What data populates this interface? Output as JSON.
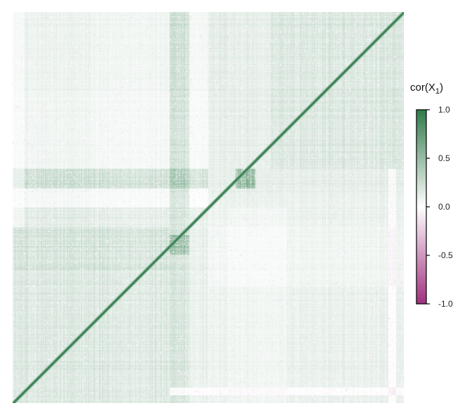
{
  "chart_data": {
    "type": "heatmap",
    "title": "",
    "xlabel": "",
    "ylabel": "",
    "description_of_matrix": "",
    "colorbar": {
      "title_main": "cor(X",
      "title_sub": "1",
      "title_end": ")",
      "range": [
        -1.0,
        1.0
      ],
      "ticks": [
        1.0,
        0.5,
        0.0,
        -0.5,
        -1.0
      ],
      "tick_labels": [
        "1.0",
        "0.5",
        "0.0",
        "-0.5",
        "-1.0"
      ],
      "colors": {
        "high": "#2f7a4a",
        "mid": "#ffffff",
        "low": "#a0307f"
      }
    },
    "diagonal_value": 1.0,
    "blocks": [
      {
        "rows": [
          0.0,
          0.03
        ],
        "cols": [
          0.0,
          0.55
        ],
        "value": -0.12
      },
      {
        "rows": [
          0.0,
          0.2
        ],
        "cols": [
          0.0,
          0.55
        ],
        "value": 0.1
      },
      {
        "rows": [
          0.0,
          0.4
        ],
        "cols": [
          0.66,
          1.0
        ],
        "value": 0.16
      },
      {
        "rows": [
          0.2,
          0.4
        ],
        "cols": [
          0.0,
          0.55
        ],
        "value": 0.06
      },
      {
        "rows": [
          0.4,
          0.45
        ],
        "cols": [
          0.0,
          0.5
        ],
        "value": 0.4
      },
      {
        "rows": [
          0.4,
          0.45
        ],
        "cols": [
          0.57,
          0.62
        ],
        "value": 0.75
      },
      {
        "rows": [
          0.45,
          0.5
        ],
        "cols": [
          0.0,
          1.0
        ],
        "value": 0.02
      },
      {
        "rows": [
          0.5,
          1.0
        ],
        "cols": [
          0.0,
          0.5
        ],
        "value": 0.22
      },
      {
        "rows": [
          0.5,
          1.0
        ],
        "cols": [
          0.5,
          0.55
        ],
        "value": 0.1
      },
      {
        "rows": [
          0.5,
          1.0
        ],
        "cols": [
          0.55,
          0.7
        ],
        "value": 0.04
      },
      {
        "rows": [
          0.5,
          1.0
        ],
        "cols": [
          0.7,
          1.0
        ],
        "value": 0.12
      },
      {
        "rows": [
          0.4,
          1.0
        ],
        "cols": [
          0.96,
          0.98
        ],
        "value": -0.15
      }
    ]
  }
}
